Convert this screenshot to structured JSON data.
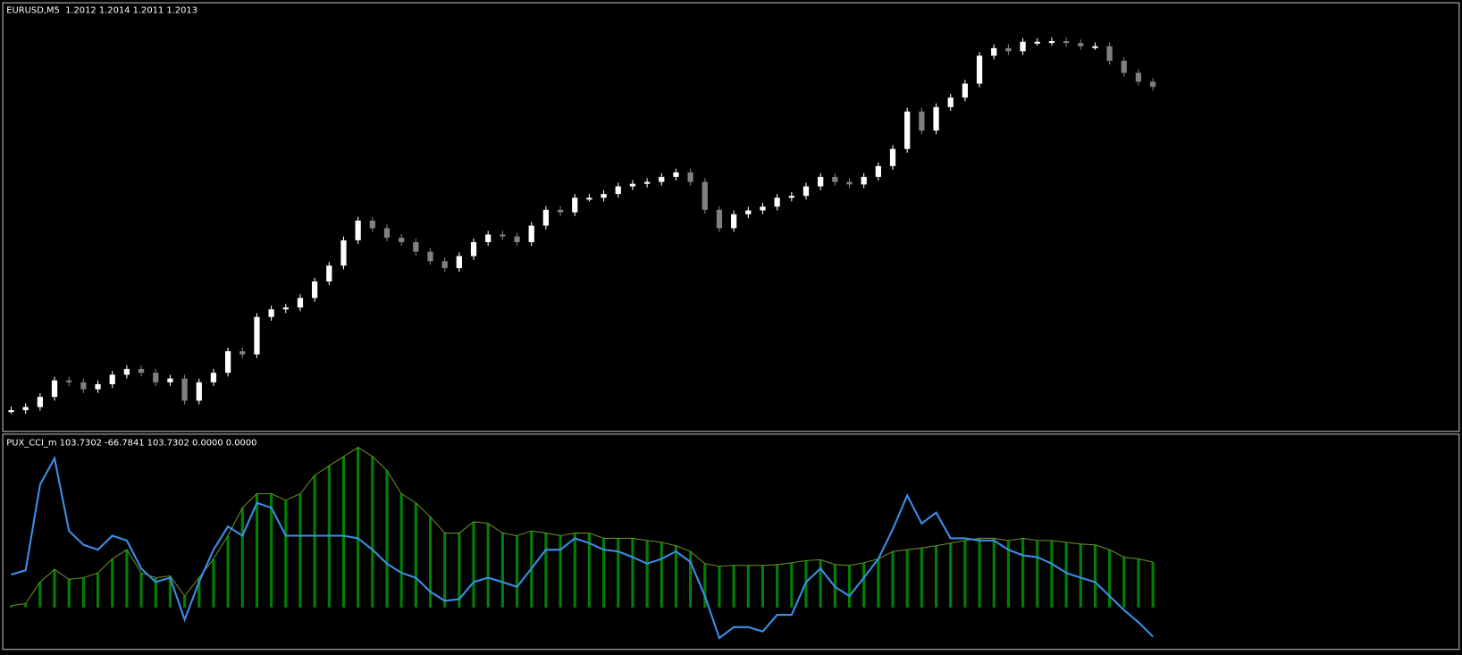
{
  "chart_data": [
    {
      "type": "candlestick",
      "title": "EURUSD,M5  1.2012 1.2014 1.2011 1.2013",
      "ylim": [
        1.1959,
        1.2026
      ],
      "color_up": "#ffffff",
      "color_down": "#808080",
      "values": [
        1.19619,
        1.19624,
        1.1964,
        1.19666,
        1.19663,
        1.19652,
        1.1966,
        1.19675,
        1.19684,
        1.19678,
        1.19663,
        1.19669,
        1.19634,
        1.19663,
        1.19678,
        1.19712,
        1.19707,
        1.19766,
        1.19778,
        1.19781,
        1.19796,
        1.19822,
        1.19847,
        1.19887,
        1.19918,
        1.19906,
        1.19891,
        1.19884,
        1.19869,
        1.19854,
        1.19843,
        1.19862,
        1.19884,
        1.19896,
        1.19893,
        1.19884,
        1.1991,
        1.19935,
        1.19931,
        1.19954,
        1.19954,
        1.1996,
        1.19972,
        1.19976,
        1.19979,
        1.19987,
        1.19994,
        1.19979,
        1.19935,
        1.19906,
        1.19928,
        1.19934,
        1.1994,
        1.19954,
        1.19957,
        1.19972,
        1.19987,
        1.19979,
        1.19975,
        1.19987,
        1.20004,
        1.20031,
        1.2009,
        1.2006,
        1.20097,
        1.20112,
        1.20134,
        1.20178,
        1.2019,
        1.20185,
        1.202,
        1.202,
        1.20201,
        1.20198,
        1.20193,
        1.20193,
        1.2017,
        1.20151,
        1.20137,
        1.20129
      ]
    },
    {
      "type": "histogram-line",
      "title": "PUX_CCI_m 103.7302 -66.7841 103.7302 0.0000 0.0000",
      "ylim": [
        -96,
        394
      ],
      "histogram": {
        "color": "#008000",
        "values": [
          4,
          9,
          58,
          87,
          64,
          68,
          79,
          111,
          132,
          79,
          68,
          72,
          26,
          68,
          111,
          164,
          228,
          260,
          260,
          245,
          260,
          302,
          324,
          345,
          366,
          345,
          313,
          260,
          239,
          207,
          170,
          170,
          196,
          192,
          170,
          164,
          175,
          170,
          164,
          170,
          170,
          158,
          158,
          158,
          153,
          149,
          141,
          128,
          100,
          94,
          96,
          96,
          96,
          98,
          102,
          107,
          109,
          98,
          96,
          102,
          111,
          128,
          132,
          136,
          141,
          147,
          153,
          158,
          158,
          153,
          158,
          153,
          153,
          149,
          145,
          143,
          132,
          115,
          111,
          103.7302
        ]
      },
      "line": {
        "color": "#3b8fe8",
        "values": [
          75,
          85,
          281,
          341,
          175,
          143,
          132,
          164,
          153,
          89,
          58,
          68,
          -28,
          58,
          132,
          185,
          164,
          239,
          228,
          164,
          164,
          164,
          164,
          164,
          158,
          132,
          100,
          79,
          68,
          36,
          15,
          19,
          58,
          68,
          58,
          47,
          89,
          132,
          132,
          158,
          147,
          132,
          128,
          115,
          100,
          111,
          128,
          104,
          26,
          -70,
          -45,
          -45,
          -55,
          -17,
          -17,
          58,
          89,
          47,
          26,
          68,
          111,
          179,
          256,
          192,
          217,
          158,
          158,
          153,
          153,
          132,
          119,
          115,
          100,
          79,
          68,
          58,
          26,
          -6,
          -34,
          -66.7841
        ]
      }
    }
  ]
}
